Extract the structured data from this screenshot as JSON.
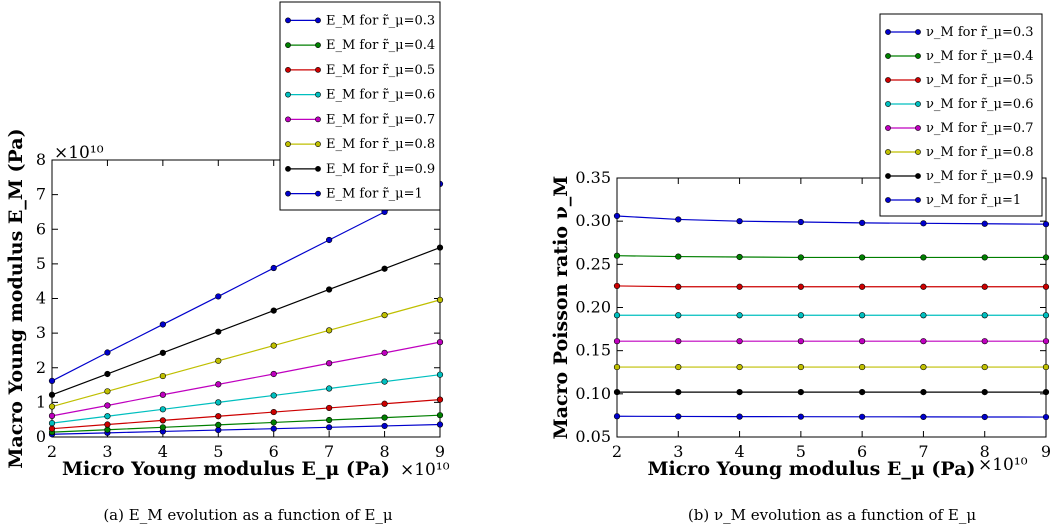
{
  "chart_data": [
    {
      "type": "line",
      "xlabel": "Micro Young modulus E_μ (Pa)",
      "ylabel": "Macro Young modulus E_M (Pa)",
      "x_multiplier": "×10¹⁰",
      "y_multiplier": "×10¹⁰",
      "x": [
        2,
        3,
        4,
        5,
        6,
        7,
        8,
        9
      ],
      "xticks": [
        "2",
        "3",
        "4",
        "5",
        "6",
        "7",
        "8",
        "9"
      ],
      "yticks": [
        "0",
        "1",
        "2",
        "3",
        "4",
        "5",
        "6",
        "7",
        "8"
      ],
      "xlim": [
        2,
        9
      ],
      "ylim": [
        0,
        8
      ],
      "legend_position": "top-center",
      "caption": "(a) E_M evolution as a function of E_μ",
      "series": [
        {
          "name": "E_M for r̃_μ=0.3",
          "color": "#0000cc",
          "values": [
            0.08,
            0.12,
            0.16,
            0.2,
            0.24,
            0.28,
            0.32,
            0.36
          ]
        },
        {
          "name": "E_M for r̃_μ=0.4",
          "color": "#007f00",
          "values": [
            0.14,
            0.21,
            0.28,
            0.35,
            0.42,
            0.49,
            0.56,
            0.63
          ]
        },
        {
          "name": "E_M for r̃_μ=0.5",
          "color": "#cc0000",
          "values": [
            0.24,
            0.36,
            0.48,
            0.6,
            0.72,
            0.84,
            0.96,
            1.08
          ]
        },
        {
          "name": "E_M for r̃_μ=0.6",
          "color": "#00bfbf",
          "values": [
            0.4,
            0.6,
            0.8,
            1.0,
            1.2,
            1.4,
            1.6,
            1.8
          ]
        },
        {
          "name": "E_M for r̃_μ=0.7",
          "color": "#bf00bf",
          "values": [
            0.61,
            0.91,
            1.22,
            1.52,
            1.82,
            2.13,
            2.43,
            2.74
          ]
        },
        {
          "name": "E_M for r̃_μ=0.8",
          "color": "#bfbf00",
          "values": [
            0.88,
            1.32,
            1.76,
            2.2,
            2.64,
            3.08,
            3.52,
            3.96
          ]
        },
        {
          "name": "E_M for r̃_μ=0.9",
          "color": "#000000",
          "values": [
            1.22,
            1.82,
            2.43,
            3.04,
            3.65,
            4.26,
            4.86,
            5.47
          ]
        },
        {
          "name": "E_M for r̃_μ=1",
          "color": "#0000cc",
          "values": [
            1.62,
            2.44,
            3.25,
            4.06,
            4.88,
            5.69,
            6.5,
            7.31
          ]
        }
      ]
    },
    {
      "type": "line",
      "xlabel": "Micro Young modulus E_μ (Pa)",
      "ylabel": "Macro Poisson ratio ν_M",
      "x_multiplier": "×10¹⁰",
      "x": [
        2,
        3,
        4,
        5,
        6,
        7,
        8,
        9
      ],
      "xticks": [
        "2",
        "3",
        "4",
        "5",
        "6",
        "7",
        "8",
        "9"
      ],
      "yticks": [
        "0.05",
        "0.10",
        "0.15",
        "0.20",
        "0.25",
        "0.30",
        "0.35"
      ],
      "xlim": [
        2,
        9
      ],
      "ylim": [
        0.05,
        0.35
      ],
      "legend_position": "top-right",
      "caption": "(b) ν_M evolution as a function of E_μ",
      "series": [
        {
          "name": "ν_M for r̃_μ=0.3",
          "color": "#0000cc",
          "values": [
            0.306,
            0.302,
            0.3,
            0.299,
            0.298,
            0.2975,
            0.297,
            0.2965
          ]
        },
        {
          "name": "ν_M for r̃_μ=0.4",
          "color": "#007f00",
          "values": [
            0.26,
            0.259,
            0.2585,
            0.258,
            0.258,
            0.258,
            0.258,
            0.258
          ]
        },
        {
          "name": "ν_M for r̃_μ=0.5",
          "color": "#cc0000",
          "values": [
            0.225,
            0.224,
            0.224,
            0.224,
            0.224,
            0.224,
            0.224,
            0.224
          ]
        },
        {
          "name": "ν_M for r̃_μ=0.6",
          "color": "#00bfbf",
          "values": [
            0.191,
            0.191,
            0.191,
            0.191,
            0.191,
            0.191,
            0.191,
            0.191
          ]
        },
        {
          "name": "ν_M for r̃_μ=0.7",
          "color": "#bf00bf",
          "values": [
            0.161,
            0.161,
            0.161,
            0.161,
            0.161,
            0.161,
            0.161,
            0.161
          ]
        },
        {
          "name": "ν_M for r̃_μ=0.8",
          "color": "#bfbf00",
          "values": [
            0.131,
            0.131,
            0.131,
            0.131,
            0.131,
            0.131,
            0.131,
            0.131
          ]
        },
        {
          "name": "ν_M for r̃_μ=0.9",
          "color": "#000000",
          "values": [
            0.102,
            0.102,
            0.102,
            0.102,
            0.102,
            0.102,
            0.102,
            0.102
          ]
        },
        {
          "name": "ν_M for r̃_μ=1",
          "color": "#0000cc",
          "values": [
            0.074,
            0.0738,
            0.0736,
            0.0735,
            0.0734,
            0.0733,
            0.0732,
            0.0731
          ]
        }
      ]
    }
  ]
}
